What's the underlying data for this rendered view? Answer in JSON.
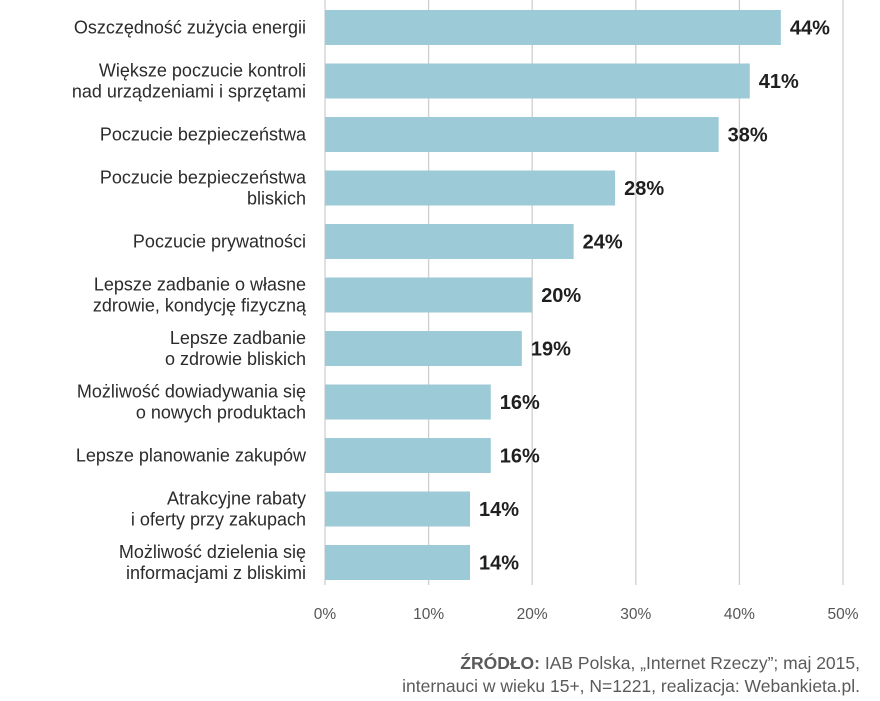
{
  "chart_data": {
    "type": "bar",
    "orientation": "horizontal",
    "categories": [
      [
        "Oszczędność zużycia energii"
      ],
      [
        "Większe poczucie kontroli",
        "nad urządzeniami i sprzętami"
      ],
      [
        "Poczucie bezpieczeństwa"
      ],
      [
        "Poczucie bezpieczeństwa",
        "bliskich"
      ],
      [
        "Poczucie prywatności"
      ],
      [
        "Lepsze zadbanie o własne",
        "zdrowie, kondycję fizyczną"
      ],
      [
        "Lepsze zadbanie",
        "o zdrowie bliskich"
      ],
      [
        "Możliwość dowiadywania się",
        "o nowych produktach"
      ],
      [
        "Lepsze planowanie zakupów"
      ],
      [
        "Atrakcyjne rabaty",
        "i oferty przy zakupach"
      ],
      [
        "Możliwość dzielenia się",
        "informacjami z bliskimi"
      ]
    ],
    "values": [
      44,
      41,
      38,
      28,
      24,
      20,
      19,
      16,
      16,
      14,
      14
    ],
    "value_labels": [
      "44%",
      "41%",
      "38%",
      "28%",
      "24%",
      "20%",
      "19%",
      "16%",
      "16%",
      "14%",
      "14%"
    ],
    "xlim": [
      0,
      50
    ],
    "xticks": [
      0,
      10,
      20,
      30,
      40,
      50
    ],
    "xtick_labels": [
      "0%",
      "10%",
      "20%",
      "30%",
      "40%",
      "50%"
    ],
    "grid": true,
    "bar_color": "#9ccad6",
    "grid_color": "#cfcfcf"
  },
  "source": {
    "label": "ŹRÓDŁO:",
    "line1": " IAB Polska, „Internet Rzeczy”; maj 2015,",
    "line2": "internauci w wieku 15+, N=1221, realizacja: Webankieta.pl."
  }
}
